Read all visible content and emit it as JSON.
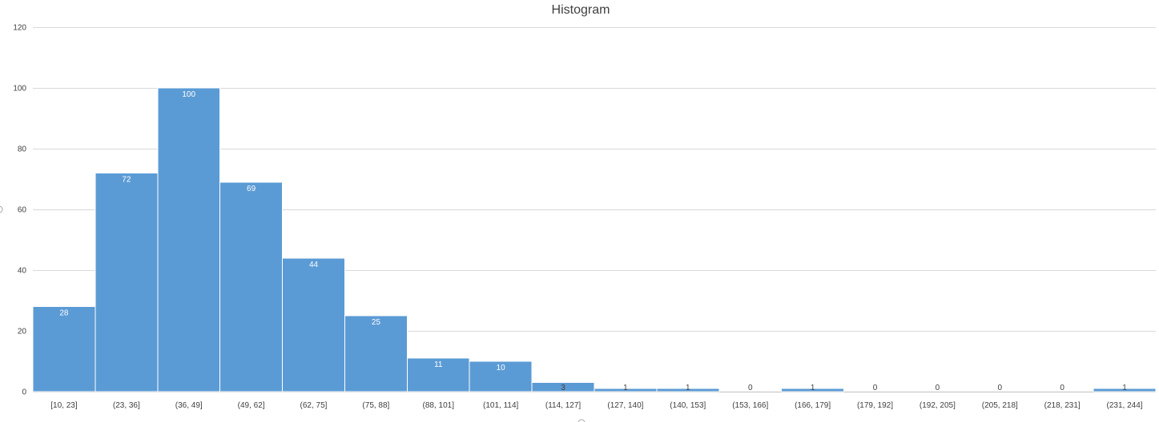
{
  "chart_data": {
    "type": "bar",
    "title": "Histogram",
    "xlabel": "",
    "ylabel": "",
    "ylim": [
      0,
      120
    ],
    "yticks": [
      0,
      20,
      40,
      60,
      80,
      100,
      120
    ],
    "grid": true,
    "legend": "none",
    "bar_color": "#5b9bd5",
    "categories": [
      "[10, 23]",
      "(23, 36]",
      "(36, 49]",
      "(49, 62]",
      "(62, 75]",
      "(75, 88]",
      "(88, 101]",
      "(101, 114]",
      "(114, 127]",
      "(127, 140]",
      "(140, 153]",
      "(153, 166]",
      "(166, 179]",
      "(179, 192]",
      "(192, 205]",
      "(205, 218]",
      "(218, 231]",
      "(231, 244]"
    ],
    "values": [
      28,
      72,
      100,
      69,
      44,
      25,
      11,
      10,
      3,
      1,
      1,
      0,
      1,
      0,
      0,
      0,
      0,
      1
    ]
  }
}
